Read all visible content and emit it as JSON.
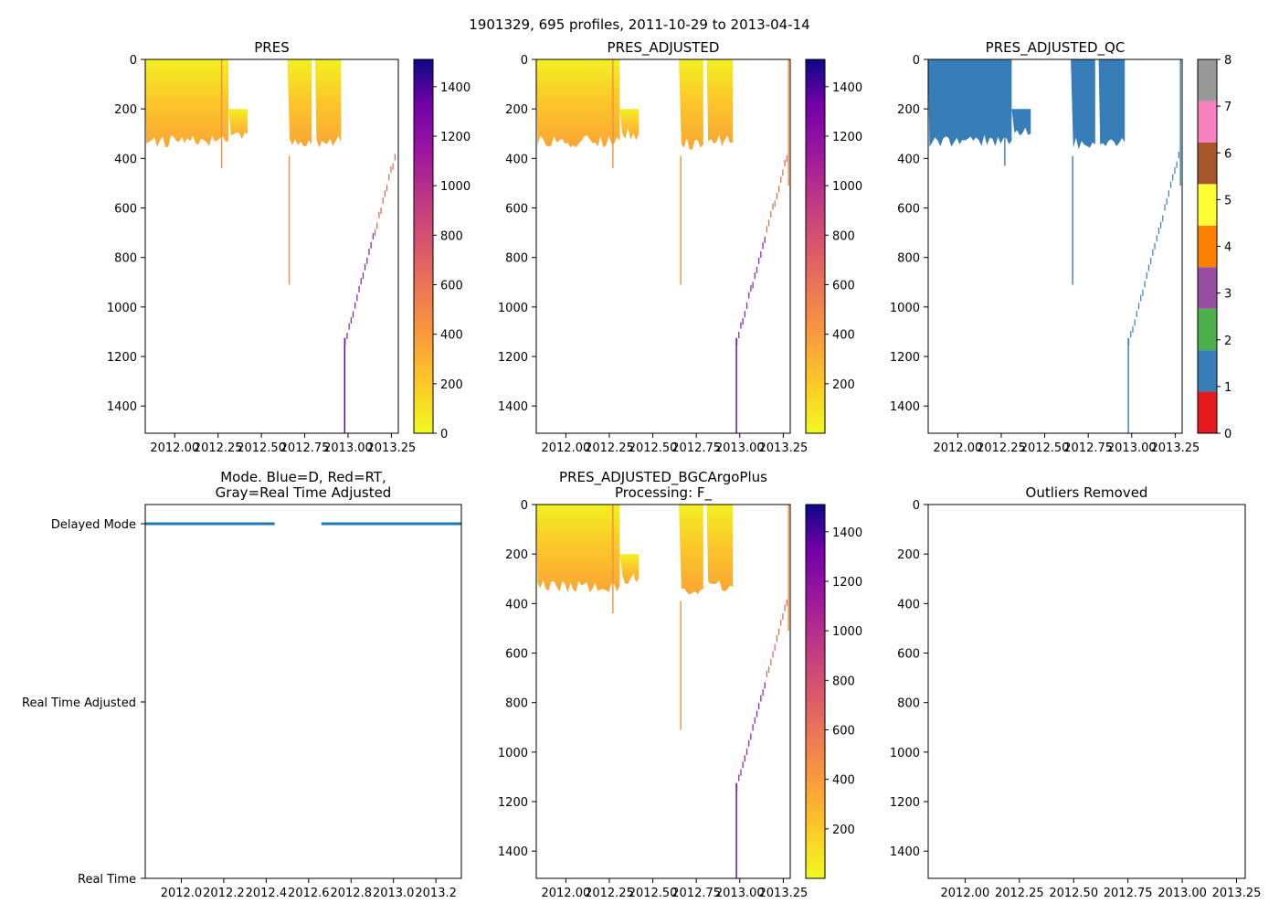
{
  "figure": {
    "suptitle": "1901329, 695 profiles, 2011-10-29 to 2013-04-14"
  },
  "colors": {
    "mode_line": "#1f77b4",
    "qc_blue": "#377eb8",
    "plasma_low": "#f0f921",
    "plasma_high": "#0d0887"
  },
  "chart_data": [
    {
      "id": "pres",
      "type": "heatmap",
      "title": "PRES",
      "xlabel": "",
      "ylabel": "",
      "xlim": [
        2011.83,
        2013.29
      ],
      "ylim": [
        1510,
        0
      ],
      "xticks": [
        2012.0,
        2012.25,
        2012.5,
        2012.75,
        2013.0,
        2013.25
      ],
      "xtick_labels": [
        "2012.00",
        "2012.25",
        "2012.50",
        "2012.75",
        "2013.00",
        "2013.25"
      ],
      "yticks": [
        0,
        200,
        400,
        600,
        800,
        1000,
        1200,
        1400
      ],
      "ytick_labels": [
        "0",
        "200",
        "400",
        "600",
        "800",
        "1000",
        "1200",
        "1400"
      ],
      "colorbar": {
        "range": [
          0,
          1510
        ],
        "ticks": [
          0,
          200,
          400,
          600,
          800,
          1000,
          1200,
          1400
        ],
        "tick_labels": [
          "0",
          "200",
          "400",
          "600",
          "800",
          "1000",
          "1200",
          "1400"
        ]
      },
      "segments": [
        {
          "x0": 2011.83,
          "x1": 2012.31,
          "ymin": 0,
          "ymax": 320
        },
        {
          "x0": 2012.31,
          "x1": 2012.42,
          "ymin": 200,
          "ymax": 290
        },
        {
          "x0": 2012.65,
          "x1": 2012.79,
          "ymin": 0,
          "ymax": 330
        },
        {
          "x0": 2012.81,
          "x1": 2012.96,
          "ymin": 0,
          "ymax": 320
        }
      ],
      "spikes": [
        {
          "x": 2012.27,
          "ymax": 440
        },
        {
          "x": 2012.66,
          "ymin": 390,
          "ymax": 910
        },
        {
          "x": 2012.98,
          "ymin": 1125,
          "ymax": 1510
        }
      ]
    },
    {
      "id": "pres_adjusted",
      "type": "heatmap",
      "title": "PRES_ADJUSTED",
      "xlabel": "",
      "ylabel": "",
      "xlim": [
        2011.83,
        2013.29
      ],
      "ylim": [
        1510,
        0
      ],
      "xticks": [
        2012.0,
        2012.25,
        2012.5,
        2012.75,
        2013.0,
        2013.25
      ],
      "xtick_labels": [
        "2012.00",
        "2012.25",
        "2012.50",
        "2012.75",
        "2013.00",
        "2013.25"
      ],
      "yticks": [
        0,
        200,
        400,
        600,
        800,
        1000,
        1200,
        1400
      ],
      "ytick_labels": [
        "0",
        "200",
        "400",
        "600",
        "800",
        "1000",
        "1200",
        "1400"
      ],
      "colorbar": {
        "range": [
          0,
          1510
        ],
        "ticks": [
          200,
          400,
          600,
          800,
          1000,
          1200,
          1400
        ],
        "tick_labels": [
          "200",
          "400",
          "600",
          "800",
          "1000",
          "1200",
          "1400"
        ]
      },
      "segments": [
        {
          "x0": 2011.83,
          "x1": 2012.31,
          "ymin": 0,
          "ymax": 320
        },
        {
          "x0": 2012.31,
          "x1": 2012.42,
          "ymin": 200,
          "ymax": 290
        },
        {
          "x0": 2012.65,
          "x1": 2012.79,
          "ymin": 0,
          "ymax": 330
        },
        {
          "x0": 2012.81,
          "x1": 2012.96,
          "ymin": 0,
          "ymax": 320
        }
      ],
      "spikes": [
        {
          "x": 2012.27,
          "ymax": 440
        },
        {
          "x": 2012.66,
          "ymin": 390,
          "ymax": 910
        },
        {
          "x": 2012.98,
          "ymin": 1125,
          "ymax": 1510
        },
        {
          "x": 2013.28,
          "ymin": 0,
          "ymax": 510
        }
      ]
    },
    {
      "id": "pres_adjusted_qc",
      "type": "heatmap",
      "title": "PRES_ADJUSTED_QC",
      "xlabel": "",
      "ylabel": "",
      "xlim": [
        2011.83,
        2013.29
      ],
      "ylim": [
        1510,
        0
      ],
      "xticks": [
        2012.0,
        2012.25,
        2012.5,
        2012.75,
        2013.0,
        2013.25
      ],
      "xtick_labels": [
        "2012.00",
        "2012.25",
        "2012.50",
        "2012.75",
        "2013.00",
        "2013.25"
      ],
      "yticks": [
        0,
        200,
        400,
        600,
        800,
        1000,
        1200,
        1400
      ],
      "ytick_labels": [
        "0",
        "200",
        "400",
        "600",
        "800",
        "1000",
        "1200",
        "1400"
      ],
      "qc_value": 1,
      "colorbar": {
        "range": [
          0,
          8
        ],
        "ticks": [
          0,
          1,
          2,
          3,
          4,
          5,
          6,
          7,
          8
        ],
        "tick_labels": [
          "0",
          "1",
          "2",
          "3",
          "4",
          "5",
          "6",
          "7",
          "8"
        ],
        "colors": [
          "#e41a1c",
          "#377eb8",
          "#4daf4a",
          "#984ea3",
          "#ff7f00",
          "#ffff33",
          "#a65628",
          "#f781bf",
          "#999999"
        ]
      },
      "segments": [
        {
          "x0": 2011.83,
          "x1": 2012.31,
          "ymin": 0,
          "ymax": 320
        },
        {
          "x0": 2012.31,
          "x1": 2012.42,
          "ymin": 200,
          "ymax": 290
        },
        {
          "x0": 2012.65,
          "x1": 2012.79,
          "ymin": 0,
          "ymax": 330
        },
        {
          "x0": 2012.81,
          "x1": 2012.96,
          "ymin": 0,
          "ymax": 320
        }
      ],
      "spikes": [
        {
          "x": 2012.27,
          "ymax": 430
        },
        {
          "x": 2012.66,
          "ymin": 390,
          "ymax": 910
        },
        {
          "x": 2012.98,
          "ymin": 1125,
          "ymax": 1510
        },
        {
          "x": 2013.28,
          "ymin": 0,
          "ymax": 510
        }
      ]
    },
    {
      "id": "mode",
      "type": "line",
      "title": "Mode. Blue=D, Red=RT,\nGray=Real Time Adjusted",
      "xlabel": "",
      "ylabel": "",
      "xlim": [
        2011.83,
        2013.32
      ],
      "xticks": [
        2012.0,
        2012.2,
        2012.4,
        2012.6,
        2012.8,
        2013.0,
        2013.2
      ],
      "xtick_labels": [
        "2012.0",
        "2012.2",
        "2012.4",
        "2012.6",
        "2012.8",
        "2013.0",
        "2013.2"
      ],
      "y_categories": [
        "Delayed Mode",
        "Real Time Adjusted",
        "Real Time"
      ],
      "series": [
        {
          "name": "Delayed Mode",
          "segments": [
            [
              2011.83,
              2012.44
            ],
            [
              2012.66,
              2013.32
            ]
          ]
        }
      ]
    },
    {
      "id": "pres_adjusted_bgcargoplus",
      "type": "heatmap",
      "title": "PRES_ADJUSTED_BGCArgoPlus\nProcessing: F_",
      "xlabel": "",
      "ylabel": "",
      "xlim": [
        2011.83,
        2013.29
      ],
      "ylim": [
        1510,
        0
      ],
      "xticks": [
        2012.0,
        2012.25,
        2012.5,
        2012.75,
        2013.0,
        2013.25
      ],
      "xtick_labels": [
        "2012.00",
        "2012.25",
        "2012.50",
        "2012.75",
        "2013.00",
        "2013.25"
      ],
      "yticks": [
        0,
        200,
        400,
        600,
        800,
        1000,
        1200,
        1400
      ],
      "ytick_labels": [
        "0",
        "200",
        "400",
        "600",
        "800",
        "1000",
        "1200",
        "1400"
      ],
      "colorbar": {
        "range": [
          0,
          1510
        ],
        "ticks": [
          200,
          400,
          600,
          800,
          1000,
          1200,
          1400
        ],
        "tick_labels": [
          "200",
          "400",
          "600",
          "800",
          "1000",
          "1200",
          "1400"
        ]
      },
      "segments": [
        {
          "x0": 2011.83,
          "x1": 2012.31,
          "ymin": 0,
          "ymax": 320
        },
        {
          "x0": 2012.31,
          "x1": 2012.42,
          "ymin": 200,
          "ymax": 290
        },
        {
          "x0": 2012.65,
          "x1": 2012.79,
          "ymin": 0,
          "ymax": 330
        },
        {
          "x0": 2012.81,
          "x1": 2012.96,
          "ymin": 0,
          "ymax": 320
        }
      ],
      "spikes": [
        {
          "x": 2012.27,
          "ymax": 440
        },
        {
          "x": 2012.66,
          "ymin": 390,
          "ymax": 910
        },
        {
          "x": 2012.98,
          "ymin": 1125,
          "ymax": 1510
        },
        {
          "x": 2013.28,
          "ymin": 0,
          "ymax": 510
        }
      ]
    },
    {
      "id": "outliers_removed",
      "type": "scatter",
      "title": "Outliers Removed",
      "xlabel": "",
      "ylabel": "",
      "xlim": [
        2011.83,
        2013.29
      ],
      "ylim": [
        1510,
        0
      ],
      "xticks": [
        2012.0,
        2012.25,
        2012.5,
        2012.75,
        2013.0,
        2013.25
      ],
      "xtick_labels": [
        "2012.00",
        "2012.25",
        "2012.50",
        "2012.75",
        "2013.00",
        "2013.25"
      ],
      "yticks": [
        0,
        200,
        400,
        600,
        800,
        1000,
        1200,
        1400
      ],
      "ytick_labels": [
        "0",
        "200",
        "400",
        "600",
        "800",
        "1000",
        "1200",
        "1400"
      ],
      "points": []
    }
  ]
}
